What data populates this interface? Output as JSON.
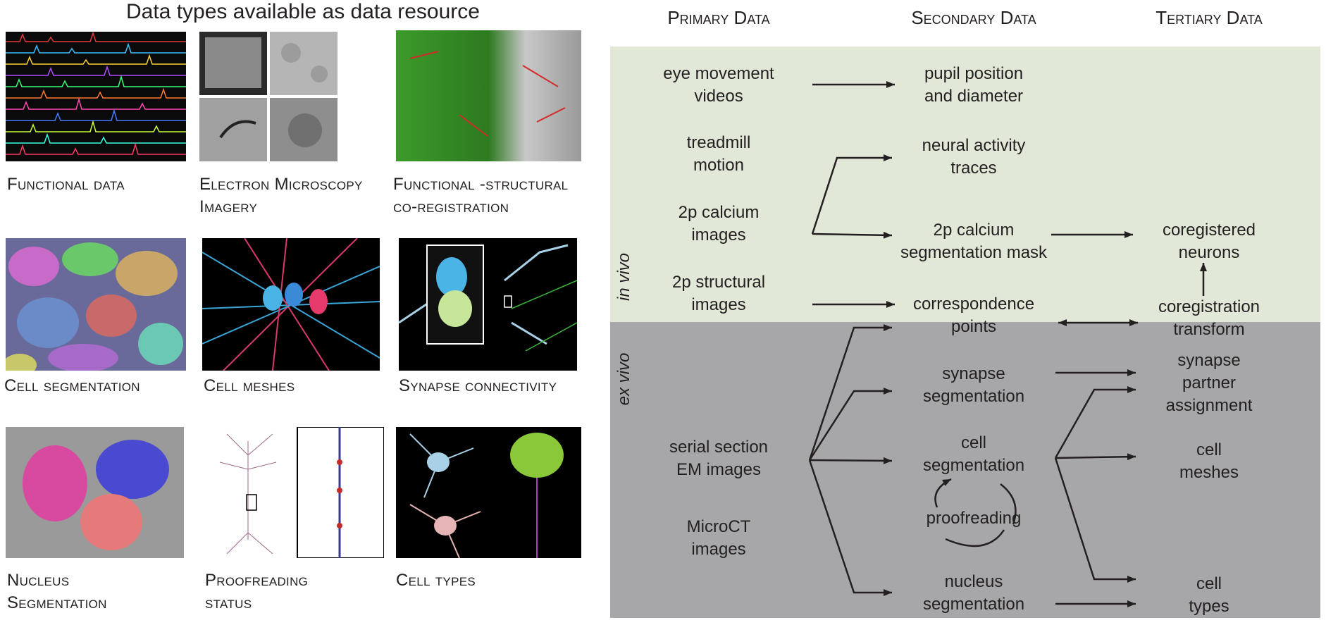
{
  "left": {
    "title": "Data types available as data resource",
    "panels": [
      {
        "line1": "Functional data",
        "line2": ""
      },
      {
        "line1": "Electron Microscopy",
        "line2": "Imagery"
      },
      {
        "line1": "Functional -structural",
        "line2": "co-registration"
      },
      {
        "line1": "Cell segmentation",
        "line2": ""
      },
      {
        "line1": "Cell meshes",
        "line2": ""
      },
      {
        "line1": "Synapse connectivity",
        "line2": ""
      },
      {
        "line1": "Nucleus",
        "line2": "Segmentation"
      },
      {
        "line1": "Proofreading",
        "line2": "status"
      },
      {
        "line1": "Cell types",
        "line2": ""
      }
    ]
  },
  "diagram": {
    "headers": {
      "primary": "Primary Data",
      "secondary": "Secondary Data",
      "tertiary": "Tertiary Data"
    },
    "regions": {
      "in_vivo": "in vivo",
      "ex_vivo": "ex vivo"
    },
    "primary": {
      "eye": [
        "eye movement",
        "videos"
      ],
      "treadmill": [
        "treadmill",
        "motion"
      ],
      "calcium": [
        "2p calcium",
        "images"
      ],
      "structural": [
        "2p structural",
        "images"
      ],
      "em": [
        "serial section",
        "EM images"
      ],
      "microct": [
        "MicroCT",
        "images"
      ]
    },
    "secondary": {
      "pupil": [
        "pupil position",
        "and diameter"
      ],
      "neural": [
        "neural activity",
        "traces"
      ],
      "mask": [
        "2p calcium",
        "segmentation mask"
      ],
      "corr": [
        "correspondence",
        "points"
      ],
      "synapse": [
        "synapse",
        "segmentation"
      ],
      "cellseg": [
        "cell",
        "segmentation"
      ],
      "proof": "proofreading",
      "nucleus": [
        "nucleus",
        "segmentation"
      ]
    },
    "tertiary": {
      "coreg": [
        "coregistered",
        "neurons"
      ],
      "transform": [
        "coregistration",
        "transform"
      ],
      "partner": [
        "synapse",
        "partner",
        "assignment"
      ],
      "meshes": [
        "cell",
        "meshes"
      ],
      "types": [
        "cell",
        "types"
      ]
    },
    "colors": {
      "in_vivo_bg": "#e1e8d8",
      "ex_vivo_bg": "#a7a7a9",
      "text": "#231f20"
    }
  }
}
